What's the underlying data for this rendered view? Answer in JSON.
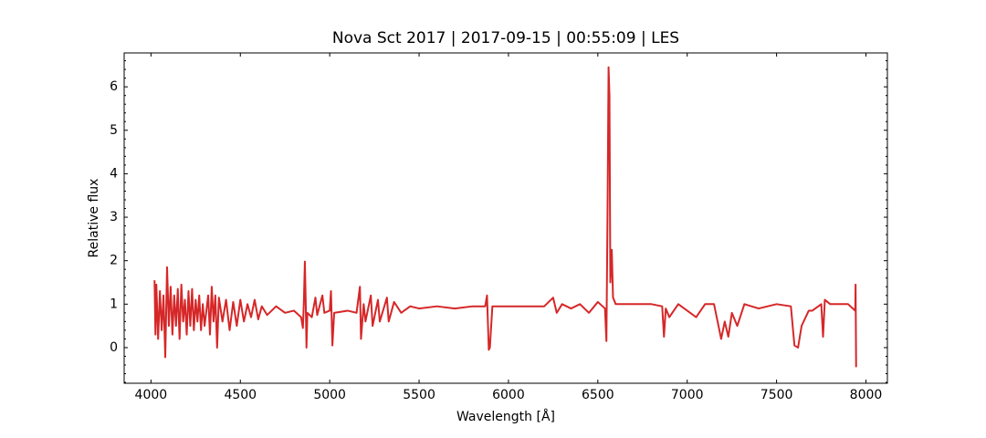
{
  "chart_data": {
    "type": "line",
    "title": "Nova Sct 2017 | 2017-09-15 | 00:55:09 | LES",
    "x_label": "Wavelength [Å]",
    "y_label": "Relative flux",
    "xlim": [
      3850,
      8120
    ],
    "ylim": [
      -0.82,
      6.78
    ],
    "xticks": [
      4000,
      4500,
      5000,
      5500,
      6000,
      6500,
      7000,
      7500,
      8000
    ],
    "yticks": [
      0,
      1,
      2,
      3,
      4,
      5,
      6
    ],
    "yminorticks": [
      -0.8,
      -0.6,
      -0.4,
      -0.2,
      0.2,
      0.4,
      0.6,
      0.8,
      1.2,
      1.4,
      1.6,
      1.8,
      2.2,
      2.4,
      2.6,
      2.8,
      3.2,
      3.4,
      3.6,
      3.8,
      4.2,
      4.4,
      4.6,
      4.8,
      5.2,
      5.4,
      5.6,
      5.8,
      6.2,
      6.4,
      6.6
    ],
    "tick_direction": "in",
    "series": [
      {
        "color": "#d62728",
        "x": [
          4020,
          4025,
          4030,
          4040,
          4050,
          4060,
          4070,
          4080,
          4090,
          4100,
          4110,
          4120,
          4130,
          4140,
          4150,
          4160,
          4170,
          4180,
          4190,
          4200,
          4210,
          4220,
          4230,
          4240,
          4250,
          4260,
          4270,
          4280,
          4290,
          4300,
          4320,
          4330,
          4340,
          4350,
          4360,
          4370,
          4380,
          4400,
          4420,
          4440,
          4460,
          4480,
          4500,
          4520,
          4540,
          4560,
          4580,
          4600,
          4620,
          4650,
          4700,
          4750,
          4800,
          4840,
          4850,
          4855,
          4861,
          4866,
          4870,
          4875,
          4900,
          4920,
          4930,
          4959,
          4970,
          5000,
          5007,
          5015,
          5025,
          5100,
          5150,
          5169,
          5175,
          5190,
          5200,
          5230,
          5240,
          5270,
          5280,
          5320,
          5330,
          5360,
          5400,
          5450,
          5500,
          5600,
          5700,
          5800,
          5870,
          5880,
          5890,
          5896,
          5910,
          6000,
          6100,
          6200,
          6250,
          6270,
          6300,
          6350,
          6400,
          6450,
          6500,
          6540,
          6548,
          6555,
          6560,
          6565,
          6570,
          6578,
          6585,
          6600,
          6700,
          6800,
          6860,
          6870,
          6880,
          6900,
          6950,
          7000,
          7050,
          7100,
          7150,
          7170,
          7190,
          7210,
          7230,
          7250,
          7280,
          7320,
          7400,
          7500,
          7580,
          7600,
          7620,
          7640,
          7680,
          7700,
          7750,
          7760,
          7770,
          7800,
          7900,
          7940,
          7942,
          7945
        ],
        "values": [
          1.55,
          0.3,
          1.45,
          0.2,
          1.3,
          0.4,
          1.2,
          -0.22,
          1.85,
          0.5,
          1.4,
          0.3,
          1.2,
          0.5,
          1.35,
          0.2,
          1.45,
          0.6,
          1.1,
          0.3,
          1.3,
          0.5,
          1.35,
          0.4,
          1.1,
          0.6,
          1.2,
          0.4,
          1.0,
          0.5,
          1.2,
          0.3,
          1.4,
          0.6,
          1.2,
          0.0,
          1.15,
          0.6,
          1.1,
          0.4,
          1.05,
          0.5,
          1.1,
          0.6,
          1.0,
          0.7,
          1.1,
          0.65,
          0.95,
          0.75,
          0.95,
          0.8,
          0.85,
          0.7,
          0.45,
          1.0,
          1.98,
          1.0,
          0.0,
          0.8,
          0.7,
          1.15,
          0.75,
          1.2,
          0.8,
          0.85,
          1.3,
          0.05,
          0.8,
          0.85,
          0.8,
          1.4,
          0.2,
          1.0,
          0.6,
          1.2,
          0.5,
          1.1,
          0.6,
          1.15,
          0.6,
          1.05,
          0.8,
          0.95,
          0.9,
          0.95,
          0.9,
          0.95,
          0.95,
          1.2,
          -0.05,
          0.0,
          0.95,
          0.95,
          0.95,
          0.95,
          1.15,
          0.8,
          1.0,
          0.9,
          1.0,
          0.8,
          1.05,
          0.9,
          0.15,
          3.5,
          6.45,
          5.8,
          1.5,
          2.25,
          1.15,
          1.0,
          1.0,
          1.0,
          0.95,
          0.25,
          0.9,
          0.7,
          1.0,
          0.85,
          0.7,
          1.0,
          1.0,
          0.6,
          0.2,
          0.6,
          0.25,
          0.8,
          0.5,
          1.0,
          0.9,
          1.0,
          0.95,
          0.05,
          0.0,
          0.5,
          0.85,
          0.85,
          1.0,
          0.25,
          1.1,
          1.0,
          1.0,
          0.85,
          1.45,
          -0.45
        ]
      }
    ]
  }
}
